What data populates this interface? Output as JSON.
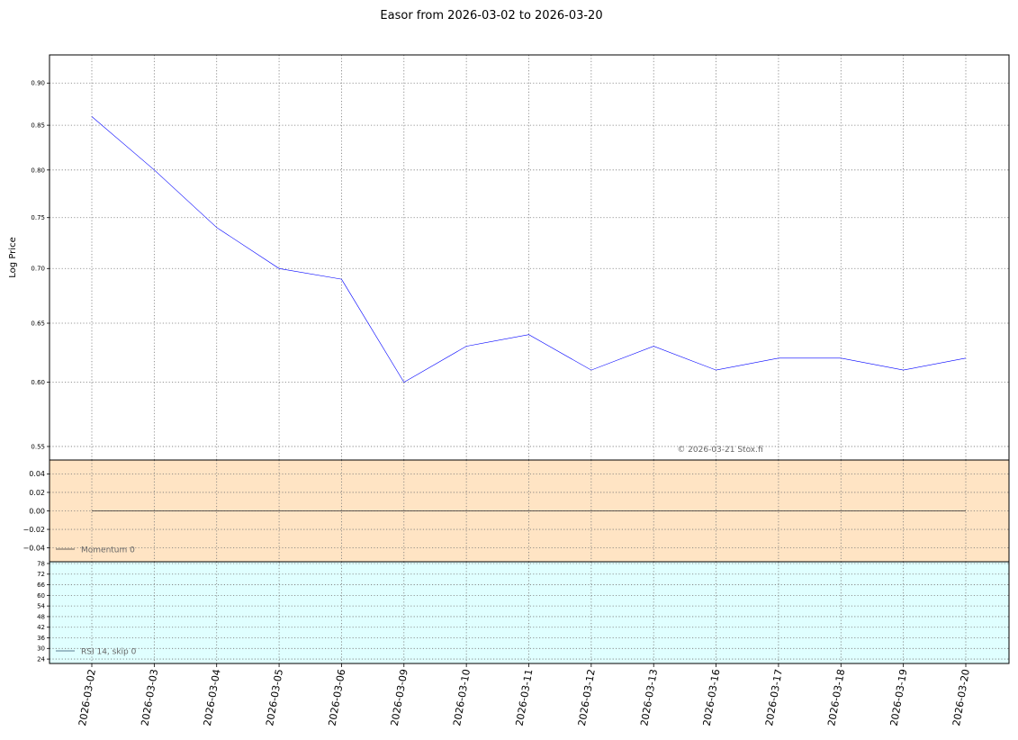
{
  "chart_data": [
    {
      "panel": "price",
      "type": "line",
      "title": "Easor from 2026-03-02 to 2026-03-20",
      "ylabel": "Log Price",
      "log_scale": true,
      "ylim": [
        0.54,
        0.935
      ],
      "yticks": [
        "0.55",
        "0.60",
        "0.65",
        "0.70",
        "0.75",
        "0.80",
        "0.85",
        "0.90"
      ],
      "x": [
        "2026-03-02",
        "2026-03-03",
        "2026-03-04",
        "2026-03-05",
        "2026-03-06",
        "2026-03-09",
        "2026-03-10",
        "2026-03-11",
        "2026-03-12",
        "2026-03-13",
        "2026-03-16",
        "2026-03-17",
        "2026-03-18",
        "2026-03-19",
        "2026-03-20"
      ],
      "series": [
        {
          "values": [
            0.86,
            0.8,
            0.74,
            0.7,
            0.69,
            0.6,
            0.63,
            0.64,
            0.61,
            0.63,
            0.61,
            0.62,
            0.62,
            0.61,
            0.62
          ],
          "color": "#0000ff"
        }
      ],
      "annotation": "© 2026-03-21 Stox.fi",
      "grid": true,
      "background": "#ffffff"
    },
    {
      "panel": "momentum",
      "type": "line",
      "ylim": [
        -0.055,
        0.055
      ],
      "yticks": [
        "0.04",
        "0.02",
        "0.00",
        "−0.02",
        "−0.04"
      ],
      "x": [
        "2026-03-02",
        "2026-03-03",
        "2026-03-04",
        "2026-03-05",
        "2026-03-06",
        "2026-03-09",
        "2026-03-10",
        "2026-03-11",
        "2026-03-12",
        "2026-03-13",
        "2026-03-16",
        "2026-03-17",
        "2026-03-18",
        "2026-03-19",
        "2026-03-20"
      ],
      "series": [
        {
          "name": "Momentum 0",
          "values": [
            0,
            0,
            0,
            0,
            0,
            0,
            0,
            0,
            0,
            0,
            0,
            0,
            0,
            0,
            0
          ],
          "color": "#333333"
        }
      ],
      "legend": "lower-left",
      "grid": true,
      "background": "#ffe4c4"
    },
    {
      "panel": "rsi",
      "type": "line",
      "ylim": [
        21.5,
        79
      ],
      "yticks": [
        "78",
        "72",
        "66",
        "60",
        "54",
        "48",
        "42",
        "36",
        "30",
        "24"
      ],
      "series": [
        {
          "name": "RSI 14, skip 0",
          "values": [],
          "color": "#2b4f6e"
        }
      ],
      "legend": "lower-left",
      "grid": true,
      "background": "#e0ffff"
    }
  ],
  "xtick_labels": [
    "2026-03-02",
    "2026-03-03",
    "2026-03-04",
    "2026-03-05",
    "2026-03-06",
    "2026-03-09",
    "2026-03-10",
    "2026-03-11",
    "2026-03-12",
    "2026-03-13",
    "2026-03-16",
    "2026-03-17",
    "2026-03-18",
    "2026-03-19",
    "2026-03-20"
  ]
}
